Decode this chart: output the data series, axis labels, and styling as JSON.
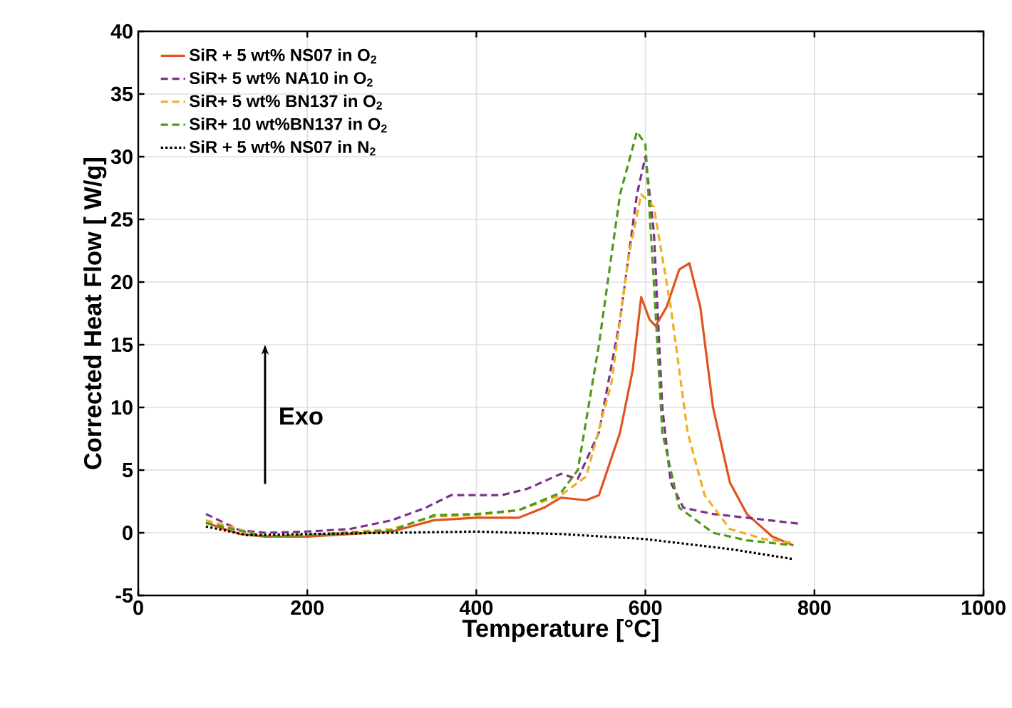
{
  "chart_data": {
    "type": "line",
    "xlabel": "Temperature [°C]",
    "ylabel": "Corrected Heat Flow  [ W/g]",
    "xlim": [
      0,
      1000
    ],
    "xticks": [
      0,
      200,
      400,
      600,
      800,
      1000
    ],
    "ylim": [
      -5,
      40
    ],
    "yticks": [
      -5,
      0,
      5,
      10,
      15,
      20,
      25,
      30,
      35,
      40
    ],
    "grid": true,
    "legend": "top left",
    "annotations": [
      "Exo"
    ],
    "series": [
      {
        "name": "SiR + 5 wt% NS07   in O$_{2}$",
        "color": "#e0531e",
        "line_style": "solid",
        "x": [
          80,
          120,
          150,
          200,
          300,
          350,
          400,
          450,
          480,
          500,
          530,
          545,
          570,
          585,
          595,
          605,
          612,
          625,
          640,
          652,
          665,
          680,
          700,
          720,
          750,
          775
        ],
        "values": [
          0.8,
          -0.1,
          -0.3,
          -0.3,
          0.1,
          1.0,
          1.2,
          1.2,
          2.0,
          2.8,
          2.6,
          3.0,
          8,
          13,
          18.8,
          17,
          16.5,
          18,
          21,
          21.5,
          18,
          10,
          4,
          1.5,
          -0.3,
          -1.0
        ]
      },
      {
        "name": "SiR+ 5 wt%  NA10   in O$_{2}$",
        "color": "#7e2f8e",
        "line_style": "dashed",
        "x": [
          80,
          120,
          150,
          200,
          250,
          300,
          340,
          370,
          400,
          430,
          460,
          500,
          520,
          545,
          570,
          590,
          600,
          610,
          620,
          630,
          645,
          680,
          720,
          785
        ],
        "values": [
          1.5,
          0.2,
          0,
          0.1,
          0.3,
          1,
          2,
          3,
          3,
          3,
          3.5,
          4.7,
          4.3,
          8,
          17,
          27,
          30,
          24,
          10,
          4,
          2,
          1.5,
          1.2,
          0.7
        ]
      },
      {
        "name": "SiR+ 5 wt%  BN137 in O$_{2}$",
        "color": "#edb120",
        "line_style": "dashed",
        "x": [
          80,
          150,
          200,
          300,
          350,
          400,
          450,
          500,
          530,
          560,
          580,
          595,
          610,
          630,
          650,
          670,
          700,
          740,
          775
        ],
        "values": [
          1,
          -0.3,
          -0.2,
          0.3,
          1.3,
          1.4,
          1.8,
          3.0,
          4.5,
          12,
          22,
          27,
          26,
          18,
          8,
          3,
          0.3,
          -0.5,
          -0.8
        ]
      },
      {
        "name": "SiR+ 10 wt%BN137 in O$_{2}$",
        "color": "#4d9a1a",
        "line_style": "dashed",
        "x": [
          80,
          150,
          200,
          300,
          350,
          400,
          450,
          500,
          520,
          545,
          570,
          590,
          600,
          610,
          620,
          640,
          680,
          720,
          775
        ],
        "values": [
          0.8,
          -0.3,
          -0.2,
          0.2,
          1.4,
          1.5,
          1.8,
          3.2,
          5,
          15,
          27,
          32,
          31,
          20,
          8,
          2,
          0,
          -0.6,
          -1.0
        ]
      },
      {
        "name": "SiR + 5 wt% NS07   in N$_{2}$",
        "color": "#000000",
        "line_style": "dotted",
        "x": [
          80,
          130,
          200,
          300,
          400,
          500,
          600,
          650,
          700,
          775
        ],
        "values": [
          0.5,
          -0.2,
          -0.1,
          0,
          0.1,
          -0.1,
          -0.5,
          -0.9,
          -1.3,
          -2.1
        ]
      }
    ]
  }
}
